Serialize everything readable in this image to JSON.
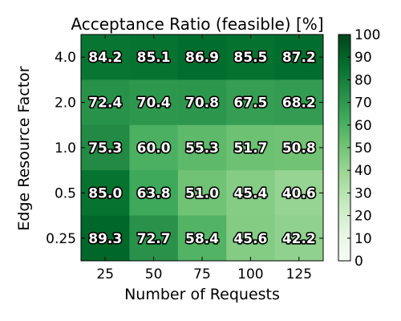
{
  "chart_data": {
    "type": "heatmap",
    "title": "Acceptance Ratio (feasible) [%]",
    "xlabel": "Number of Requests",
    "ylabel": "Edge Resource Factor",
    "x_categories": [
      "25",
      "50",
      "75",
      "100",
      "125"
    ],
    "y_categories": [
      "4.0",
      "2.0",
      "1.0",
      "0.5",
      "0.25"
    ],
    "values": [
      [
        84.2,
        85.1,
        86.9,
        85.5,
        87.2
      ],
      [
        72.4,
        70.4,
        70.8,
        67.5,
        68.2
      ],
      [
        75.3,
        60.0,
        55.3,
        51.7,
        50.8
      ],
      [
        85.0,
        63.8,
        51.0,
        45.4,
        40.6
      ],
      [
        89.3,
        72.7,
        58.4,
        45.6,
        42.2
      ]
    ],
    "colorbar": {
      "min": 0,
      "max": 100,
      "ticks": [
        0,
        10,
        20,
        30,
        40,
        50,
        60,
        70,
        80,
        90,
        100
      ],
      "colormap": "Greens"
    }
  }
}
